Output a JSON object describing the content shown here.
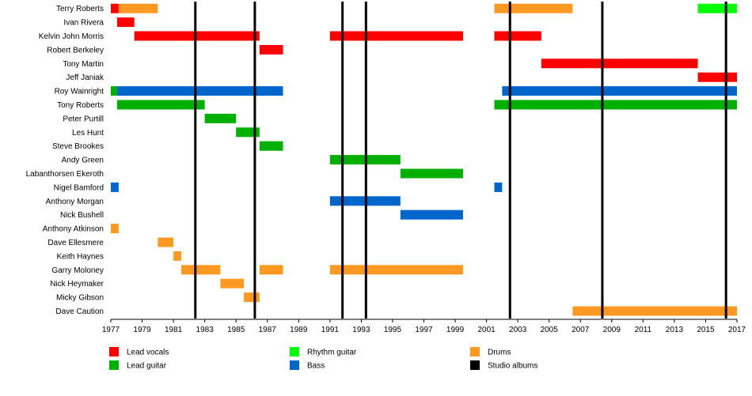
{
  "chart_data": {
    "type": "timeline",
    "title": "",
    "xlabel": "",
    "ylabel": "",
    "xlim": [
      1977,
      2017
    ],
    "x_ticks": [
      1977,
      1979,
      1981,
      1983,
      1985,
      1987,
      1989,
      1991,
      1993,
      1995,
      1997,
      1999,
      2001,
      2003,
      2005,
      2007,
      2009,
      2011,
      2013,
      2015,
      2017
    ],
    "grid": false,
    "legend_position": "bottom",
    "colors": {
      "lead_vocals": "#ff0000",
      "lead_guitar": "#00b000",
      "rhythm_guitar": "#00ff00",
      "bass": "#0066cc",
      "drums": "#ff9922",
      "studio_albums": "#000000"
    },
    "legend": [
      {
        "role": "lead_vocals",
        "label": "Lead vocals"
      },
      {
        "role": "lead_guitar",
        "label": "Lead guitar"
      },
      {
        "role": "rhythm_guitar",
        "label": "Rhythm guitar"
      },
      {
        "role": "bass",
        "label": "Bass"
      },
      {
        "role": "drums",
        "label": "Drums"
      },
      {
        "role": "studio_albums",
        "label": "Studio albums"
      }
    ],
    "studio_albums": [
      1982.4,
      1986.2,
      1991.8,
      1993.3,
      2002.5,
      2008.4,
      2016.3
    ],
    "members": [
      {
        "name": "Terry Roberts",
        "periods": [
          {
            "role": "lead_vocals",
            "start": 1977.0,
            "end": 1977.5
          },
          {
            "role": "drums",
            "start": 1977.5,
            "end": 1980.0
          },
          {
            "role": "drums",
            "start": 2001.5,
            "end": 2006.5
          },
          {
            "role": "rhythm_guitar",
            "start": 2014.5,
            "end": 2017.0
          }
        ]
      },
      {
        "name": "Ivan Rivera",
        "periods": [
          {
            "role": "lead_vocals",
            "start": 1977.4,
            "end": 1978.5
          }
        ]
      },
      {
        "name": "Kelvin John Morris",
        "periods": [
          {
            "role": "lead_vocals",
            "start": 1978.5,
            "end": 1986.5
          },
          {
            "role": "lead_vocals",
            "start": 1991.0,
            "end": 1999.5
          },
          {
            "role": "lead_vocals",
            "start": 2001.5,
            "end": 2004.5
          }
        ]
      },
      {
        "name": "Robert Berkeley",
        "periods": [
          {
            "role": "lead_vocals",
            "start": 1986.5,
            "end": 1988.0
          }
        ]
      },
      {
        "name": "Tony Martin",
        "periods": [
          {
            "role": "lead_vocals",
            "start": 2004.5,
            "end": 2014.5
          }
        ]
      },
      {
        "name": "Jeff Janiak",
        "periods": [
          {
            "role": "lead_vocals",
            "start": 2014.5,
            "end": 2017.0
          }
        ]
      },
      {
        "name": "Roy Wainright",
        "periods": [
          {
            "role": "lead_guitar",
            "start": 1977.0,
            "end": 1977.4
          },
          {
            "role": "bass",
            "start": 1977.4,
            "end": 1988.0
          },
          {
            "role": "bass",
            "start": 2002.0,
            "end": 2017.0
          }
        ]
      },
      {
        "name": "Tony Roberts",
        "periods": [
          {
            "role": "lead_guitar",
            "start": 1977.4,
            "end": 1983.0
          },
          {
            "role": "lead_guitar",
            "start": 2001.5,
            "end": 2017.0
          }
        ]
      },
      {
        "name": "Peter Purtill",
        "periods": [
          {
            "role": "lead_guitar",
            "start": 1983.0,
            "end": 1985.0
          }
        ]
      },
      {
        "name": "Les Hunt",
        "periods": [
          {
            "role": "lead_guitar",
            "start": 1985.0,
            "end": 1986.5
          }
        ]
      },
      {
        "name": "Steve Brookes",
        "periods": [
          {
            "role": "lead_guitar",
            "start": 1986.5,
            "end": 1988.0
          }
        ]
      },
      {
        "name": "Andy Green",
        "periods": [
          {
            "role": "lead_guitar",
            "start": 1991.0,
            "end": 1995.5
          }
        ]
      },
      {
        "name": "Labanthorsen Ekeroth",
        "periods": [
          {
            "role": "lead_guitar",
            "start": 1995.5,
            "end": 1999.5
          }
        ]
      },
      {
        "name": "Nigel Bamford",
        "periods": [
          {
            "role": "bass",
            "start": 1977.0,
            "end": 1977.5
          },
          {
            "role": "bass",
            "start": 2001.5,
            "end": 2002.0
          }
        ]
      },
      {
        "name": "Anthony Morgan",
        "periods": [
          {
            "role": "bass",
            "start": 1991.0,
            "end": 1995.5
          }
        ]
      },
      {
        "name": "Nick Bushell",
        "periods": [
          {
            "role": "bass",
            "start": 1995.5,
            "end": 1999.5
          }
        ]
      },
      {
        "name": "Anthony Atkinson",
        "periods": [
          {
            "role": "drums",
            "start": 1977.0,
            "end": 1977.5
          }
        ]
      },
      {
        "name": "Dave Ellesmere",
        "periods": [
          {
            "role": "drums",
            "start": 1980.0,
            "end": 1981.0
          }
        ]
      },
      {
        "name": "Keith Haynes",
        "periods": [
          {
            "role": "drums",
            "start": 1981.0,
            "end": 1981.5
          }
        ]
      },
      {
        "name": "Garry Moloney",
        "periods": [
          {
            "role": "drums",
            "start": 1981.5,
            "end": 1984.0
          },
          {
            "role": "drums",
            "start": 1986.5,
            "end": 1988.0
          },
          {
            "role": "drums",
            "start": 1991.0,
            "end": 1999.5
          }
        ]
      },
      {
        "name": "Nick Heymaker",
        "periods": [
          {
            "role": "drums",
            "start": 1984.0,
            "end": 1985.5
          }
        ]
      },
      {
        "name": "Micky Gibson",
        "periods": [
          {
            "role": "drums",
            "start": 1985.5,
            "end": 1986.5
          }
        ]
      },
      {
        "name": "Dave Caution",
        "periods": [
          {
            "role": "drums",
            "start": 2006.5,
            "end": 2017.0
          }
        ]
      }
    ]
  }
}
